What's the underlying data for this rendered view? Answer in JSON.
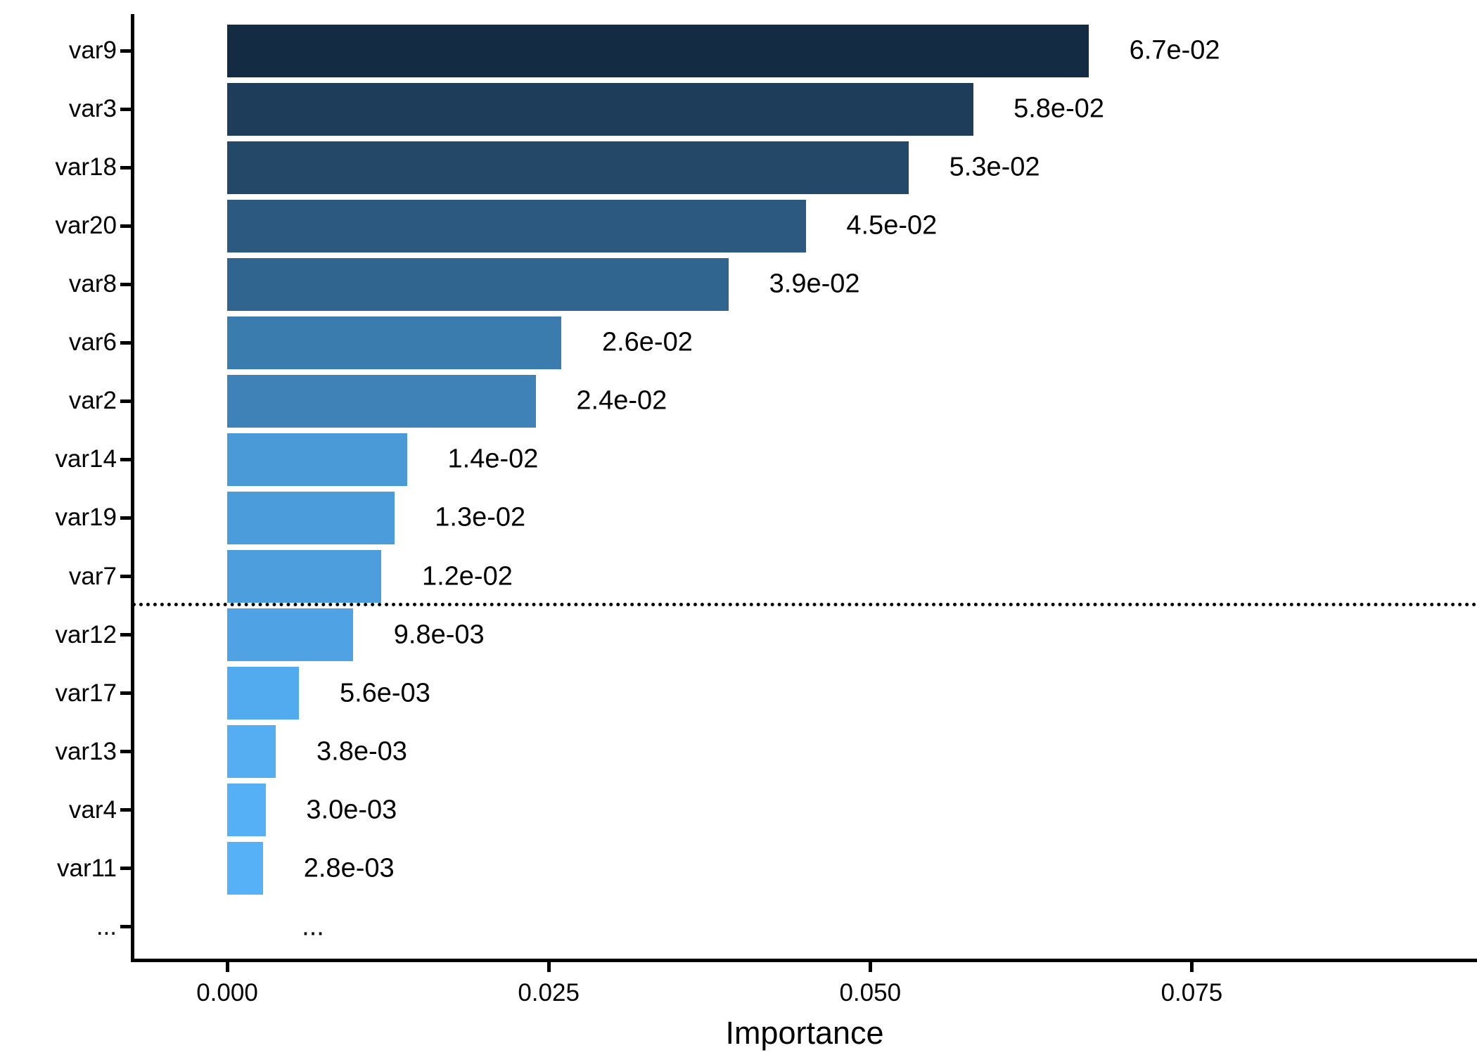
{
  "chart_data": {
    "type": "bar",
    "orientation": "horizontal",
    "title": "",
    "xlabel": "Importance",
    "ylabel": "",
    "grid": false,
    "legend": false,
    "background": "#ffffff",
    "axis_color": "#000000",
    "text_color": "#000000",
    "categories": [
      "var9",
      "var3",
      "var18",
      "var20",
      "var8",
      "var6",
      "var2",
      "var14",
      "var19",
      "var7",
      "var12",
      "var17",
      "var13",
      "var4",
      "var11",
      "..."
    ],
    "values": [
      0.067,
      0.058,
      0.053,
      0.045,
      0.039,
      0.026,
      0.024,
      0.014,
      0.013,
      0.012,
      0.0098,
      0.0056,
      0.0038,
      0.003,
      0.0028,
      null
    ],
    "value_labels": [
      "6.7e-02",
      "5.8e-02",
      "5.3e-02",
      "4.5e-02",
      "3.9e-02",
      "2.6e-02",
      "2.4e-02",
      "1.4e-02",
      "1.3e-02",
      "1.2e-02",
      "9.8e-03",
      "5.6e-03",
      "3.8e-03",
      "3.0e-03",
      "2.8e-03",
      "..."
    ],
    "bar_colors": [
      "#132B43",
      "#1D3D5A",
      "#234868",
      "#2B5980",
      "#306590",
      "#3B7CAF",
      "#3F82B7",
      "#4A9AD8",
      "#4B9CDA",
      "#4C9EDD",
      "#4FA2E3",
      "#53ABEF",
      "#55AEF2",
      "#56B0F5",
      "#56B1F7",
      null
    ],
    "gradient_low_color": "#56B1F7",
    "gradient_high_color": "#132B43",
    "x_ticks": [
      {
        "value": 0.0,
        "label": "0.000"
      },
      {
        "value": 0.025,
        "label": "0.025"
      },
      {
        "value": 0.05,
        "label": "0.050"
      },
      {
        "value": 0.075,
        "label": "0.075"
      }
    ],
    "xlim": [
      -0.0074,
      0.0972
    ],
    "threshold_line": {
      "style": "dotted",
      "color": "#000000",
      "position_between": [
        "var7",
        "var12"
      ]
    }
  }
}
